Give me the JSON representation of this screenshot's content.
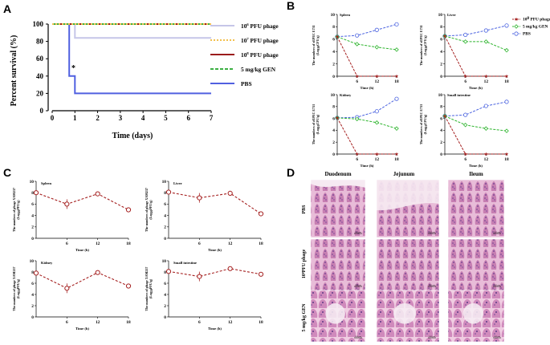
{
  "figure": {
    "panel_labels": [
      "A",
      "B",
      "C",
      "D"
    ]
  },
  "chart_data": [
    {
      "id": "A",
      "type": "line",
      "subtype": "kaplan-meier",
      "xlabel": "Time (days)",
      "ylabel": "Percent survival (%)",
      "xlim": [
        0,
        7
      ],
      "ylim": [
        0,
        100
      ],
      "xticks": [
        "0",
        "1",
        "2",
        "3",
        "4",
        "5",
        "6",
        "7"
      ],
      "yticks": [
        "0",
        "20",
        "40",
        "60",
        "80",
        "100"
      ],
      "annotation": "*",
      "series": [
        {
          "name_base": "10",
          "name_exp": "6",
          "name_rest": " PFU phage",
          "color": "#c6c6e8",
          "dash": "",
          "points": [
            [
              0,
              100
            ],
            [
              0.5,
              100
            ],
            [
              1,
              100
            ],
            [
              1,
              84
            ],
            [
              7,
              84
            ]
          ]
        },
        {
          "name_base": "10",
          "name_exp": "7",
          "name_rest": " PFU phage",
          "color": "#f2c04e",
          "dash": "2,2",
          "points": [
            [
              0,
              100
            ],
            [
              7,
              100
            ]
          ]
        },
        {
          "name_base": "10",
          "name_exp": "8",
          "name_rest": " PFU phage",
          "color": "#9b1c1c",
          "dash": "",
          "points": [
            [
              0,
              100
            ],
            [
              7,
              100
            ]
          ]
        },
        {
          "name_base": "",
          "name_exp": "",
          "name_rest": "5 mg/kg GEN",
          "color": "#3cb043",
          "dash": "4,2",
          "points": [
            [
              0,
              100
            ],
            [
              7,
              100
            ]
          ]
        },
        {
          "name_base": "",
          "name_exp": "",
          "name_rest": "PBS",
          "color": "#5060e0",
          "dash": "",
          "points": [
            [
              0,
              100
            ],
            [
              0.75,
              100
            ],
            [
              0.75,
              40
            ],
            [
              1,
              40
            ],
            [
              1,
              20
            ],
            [
              7,
              20
            ]
          ]
        }
      ]
    },
    {
      "id": "B",
      "type": "line",
      "ylabel_line1": "The numbers of zEPEC E731",
      "ylabel_line2": "(Log",
      "ylabel_sub": "10",
      "ylabel_rest": "CFU/g)",
      "xlabel": "Time (h)",
      "xticks": [
        0,
        6,
        12,
        18
      ],
      "xlim": [
        0,
        18
      ],
      "ylim": [
        0,
        10
      ],
      "yticks": [
        "0",
        "2",
        "4",
        "6",
        "8",
        "10"
      ],
      "legend": [
        {
          "base": "10",
          "exp": "8",
          "rest": " PFU phage",
          "color": "#a52020",
          "marker": "star"
        },
        {
          "base": "",
          "exp": "",
          "rest": "5 mg/kg GEN",
          "color": "#2fb52f",
          "marker": "diamond"
        },
        {
          "base": "",
          "exp": "",
          "rest": "PBS",
          "color": "#4b63e0",
          "marker": "circle"
        }
      ],
      "subplots": [
        {
          "title": "Spleen",
          "series": [
            {
              "name": "phage",
              "values": [
                [
                  0,
                  6.4
                ],
                [
                  6,
                  0
                ],
                [
                  12,
                  0
                ],
                [
                  18,
                  0
                ]
              ]
            },
            {
              "name": "GEN",
              "values": [
                [
                  0,
                  6.4
                ],
                [
                  6,
                  5.2
                ],
                [
                  12,
                  4.7
                ],
                [
                  18,
                  4.3
                ]
              ]
            },
            {
              "name": "PBS",
              "values": [
                [
                  0,
                  6.4
                ],
                [
                  6,
                  6.6
                ],
                [
                  12,
                  7.5
                ],
                [
                  18,
                  8.4
                ]
              ]
            }
          ]
        },
        {
          "title": "Liver",
          "series": [
            {
              "name": "phage",
              "values": [
                [
                  0,
                  6.5
                ],
                [
                  6,
                  0
                ],
                [
                  12,
                  0
                ],
                [
                  18,
                  0
                ]
              ]
            },
            {
              "name": "GEN",
              "values": [
                [
                  0,
                  6.5
                ],
                [
                  6,
                  5.6
                ],
                [
                  12,
                  5.6
                ],
                [
                  18,
                  4.2
                ]
              ]
            },
            {
              "name": "PBS",
              "values": [
                [
                  0,
                  6.5
                ],
                [
                  6,
                  6.7
                ],
                [
                  12,
                  7.4
                ],
                [
                  18,
                  8.2
                ]
              ]
            }
          ]
        },
        {
          "title": "Kidney",
          "series": [
            {
              "name": "phage",
              "values": [
                [
                  0,
                  6.1
                ],
                [
                  6,
                  0
                ],
                [
                  12,
                  0
                ],
                [
                  18,
                  0
                ]
              ]
            },
            {
              "name": "GEN",
              "values": [
                [
                  0,
                  6.1
                ],
                [
                  6,
                  5.9
                ],
                [
                  12,
                  5.3
                ],
                [
                  18,
                  4.3
                ]
              ]
            },
            {
              "name": "PBS",
              "values": [
                [
                  0,
                  6.1
                ],
                [
                  6,
                  6.2
                ],
                [
                  12,
                  7.2
                ],
                [
                  18,
                  9.3
                ]
              ]
            }
          ]
        },
        {
          "title": "Small intestine",
          "series": [
            {
              "name": "phage",
              "values": [
                [
                  0,
                  6.4
                ],
                [
                  6,
                  0
                ],
                [
                  12,
                  0
                ],
                [
                  18,
                  0
                ]
              ]
            },
            {
              "name": "GEN",
              "values": [
                [
                  0,
                  6.4
                ],
                [
                  6,
                  4.9
                ],
                [
                  12,
                  4.3
                ],
                [
                  18,
                  3.9
                ]
              ]
            },
            {
              "name": "PBS",
              "values": [
                [
                  0,
                  6.4
                ],
                [
                  6,
                  6.6
                ],
                [
                  12,
                  8.1
                ],
                [
                  18,
                  8.8
                ]
              ]
            }
          ]
        }
      ]
    },
    {
      "id": "C",
      "type": "line",
      "ylabel_line1": "The numbers of phage XAM237",
      "ylabel_line2": "(Log",
      "ylabel_sub": "10",
      "ylabel_rest": "PFU/g)",
      "xlabel": "Time (h)",
      "xticks": [
        6,
        12,
        18
      ],
      "xlim": [
        0,
        18
      ],
      "ylim": [
        0,
        10
      ],
      "yticks": [
        "0",
        "2",
        "4",
        "6",
        "8",
        "10"
      ],
      "color": "#a52020",
      "subplots": [
        {
          "title": "Spleen",
          "values": [
            [
              0,
              8.0
            ],
            [
              6,
              6.0
            ],
            [
              12,
              7.8
            ],
            [
              18,
              5.0
            ]
          ]
        },
        {
          "title": "Liver",
          "values": [
            [
              0,
              8.1
            ],
            [
              6,
              7.1
            ],
            [
              12,
              7.9
            ],
            [
              18,
              4.3
            ]
          ]
        },
        {
          "title": "Kidney",
          "values": [
            [
              0,
              7.8
            ],
            [
              6,
              5.1
            ],
            [
              12,
              7.9
            ],
            [
              18,
              5.5
            ]
          ]
        },
        {
          "title": "Small intestine",
          "values": [
            [
              0,
              8.1
            ],
            [
              6,
              7.2
            ],
            [
              12,
              8.6
            ],
            [
              18,
              7.6
            ]
          ]
        }
      ]
    }
  ],
  "histology": {
    "columns": [
      "Duodenum",
      "Jejunum",
      "Ileum"
    ],
    "rows": [
      "PBS",
      "10⁸PFU phage",
      "5 mg/kg GEN"
    ],
    "scale_bar": "100 μm"
  }
}
